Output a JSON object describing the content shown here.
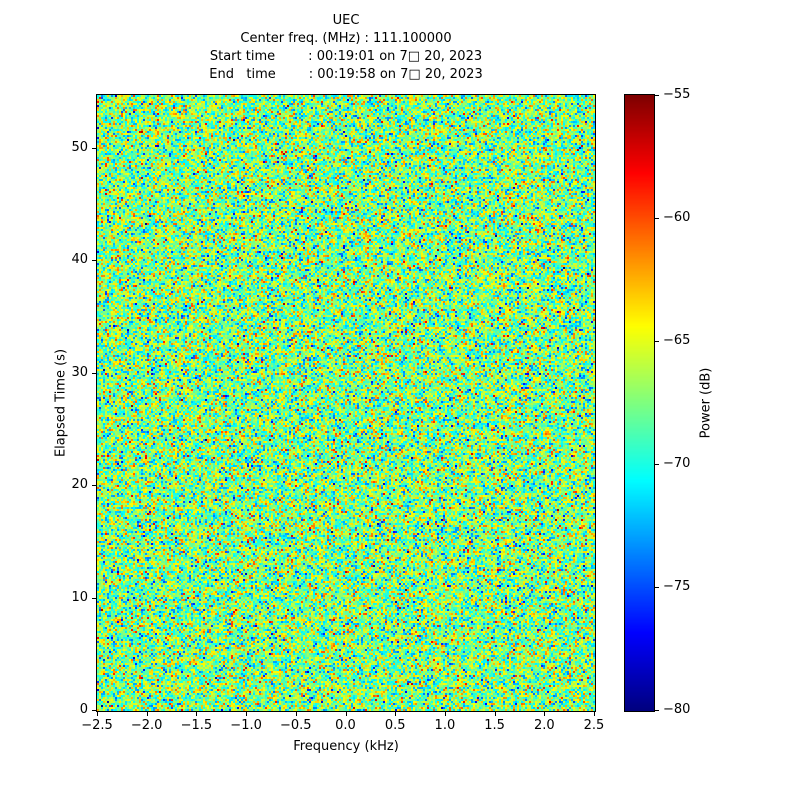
{
  "figure": {
    "subtitle_lines": [
      "Center freq. (MHz) : 111.100000",
      "Start time        : 00:19:01 on 7□ 20, 2023",
      "End   time        : 00:19:58 on 7□ 20, 2023"
    ]
  },
  "chart_data": {
    "type": "heatmap",
    "title": "UEC",
    "subtitle_center_freq": "Center freq. (MHz) : 111.100000",
    "start_time": "00:19:01 on 7□ 20, 2023",
    "end_time": "00:19:58 on 7□ 20, 2023",
    "center_freq_mhz": 111.1,
    "xlabel": "Frequency (kHz)",
    "ylabel": "Elapsed Time (s)",
    "colorbar_label": "Power (dB)",
    "colormap": "jet",
    "xlim": [
      -2.5,
      2.5
    ],
    "ylim": [
      0,
      54.7
    ],
    "clim": [
      -80,
      -55
    ],
    "x_ticks": [
      -2.5,
      -2.0,
      -1.5,
      -1.0,
      -0.5,
      0.0,
      0.5,
      1.0,
      1.5,
      2.0,
      2.5
    ],
    "x_tick_labels": [
      "−2.5",
      "−2.0",
      "−1.5",
      "−1.0",
      "−0.5",
      "0.0",
      "0.5",
      "1.0",
      "1.5",
      "2.0",
      "2.5"
    ],
    "y_ticks": [
      0,
      10,
      20,
      30,
      40,
      50
    ],
    "y_tick_labels": [
      "0",
      "10",
      "20",
      "30",
      "40",
      "50"
    ],
    "colorbar_ticks": [
      -55,
      -60,
      -65,
      -70,
      -75,
      -80
    ],
    "colorbar_tick_labels": [
      "−55",
      "−60",
      "−65",
      "−70",
      "−75",
      "−80"
    ],
    "grid": false,
    "legend": "none",
    "values_summary": "Wideband random noise spectrogram; power values are gaussian-distributed around -67.5 dB (std ~3.3 dB), clipped to [-80, -55] dB, no visible coherent signal",
    "noise": {
      "mean_db": -67.5,
      "std_db": 3.3,
      "seed": 42,
      "cols": 249,
      "rows": 308
    }
  }
}
